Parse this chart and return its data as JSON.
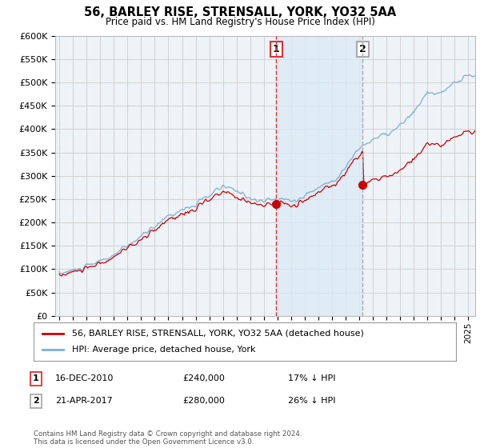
{
  "title": "56, BARLEY RISE, STRENSALL, YORK, YO32 5AA",
  "subtitle": "Price paid vs. HM Land Registry's House Price Index (HPI)",
  "ylabel_ticks": [
    "£0",
    "£50K",
    "£100K",
    "£150K",
    "£200K",
    "£250K",
    "£300K",
    "£350K",
    "£400K",
    "£450K",
    "£500K",
    "£550K",
    "£600K"
  ],
  "ylim": [
    0,
    600000
  ],
  "ytick_vals": [
    0,
    50000,
    100000,
    150000,
    200000,
    250000,
    300000,
    350000,
    400000,
    450000,
    500000,
    550000,
    600000
  ],
  "hpi_color": "#7bafd4",
  "sale_color": "#cc0000",
  "vline1_color": "#dd3333",
  "vline2_color": "#aaaaaa",
  "shade_color": "#dce9f5",
  "transaction1": {
    "date": "16-DEC-2010",
    "price": 240000,
    "label": "1",
    "pct": "17% ↓ HPI"
  },
  "transaction2": {
    "date": "21-APR-2017",
    "price": 280000,
    "label": "2",
    "pct": "26% ↓ HPI"
  },
  "legend_line1": "56, BARLEY RISE, STRENSALL, YORK, YO32 5AA (detached house)",
  "legend_line2": "HPI: Average price, detached house, York",
  "footnote": "Contains HM Land Registry data © Crown copyright and database right 2024.\nThis data is licensed under the Open Government Licence v3.0.",
  "background_color": "#ffffff",
  "plot_background": "#eef3f8",
  "grid_color": "#cccccc"
}
